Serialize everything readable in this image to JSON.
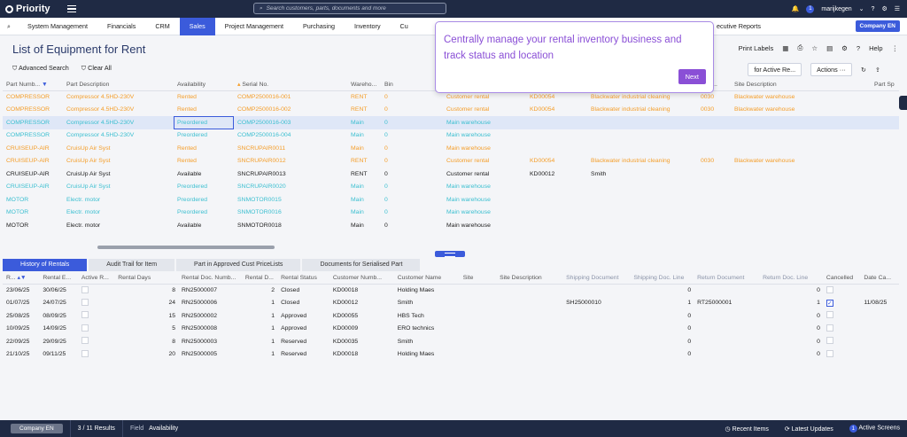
{
  "app": {
    "name": "Priority",
    "search_placeholder": "Search customers, parts, documents and more",
    "user": "marijkegen",
    "notif_count": "1",
    "company_btn": "Company EN"
  },
  "menu": [
    "System Management",
    "Financials",
    "CRM",
    "Sales",
    "Project Management",
    "Purchasing",
    "Inventory",
    "Cu",
    "ecutive Reports"
  ],
  "page": {
    "title": "List of Equipment for Rent",
    "print_labels": "Print Labels",
    "help": "Help",
    "advanced_search": "Advanced Search",
    "clear_all": "Clear All",
    "action_btn": "for Active Re...",
    "actions": "Actions"
  },
  "tooltip": {
    "text": "Centrally manage your rental inventory business and track status and location",
    "next": "Next"
  },
  "grid": {
    "headers": [
      "Part Numb...",
      "Part Description",
      "Availability",
      "Serial No.",
      "Wareho...",
      "Bin",
      "",
      "",
      "",
      "",
      "",
      "ame...",
      "Site Description",
      "Part Sp"
    ],
    "rows": [
      {
        "c": "rent",
        "v": [
          "COMPRESSOR",
          "Compressor 4.5HD-230V",
          "Rented",
          "COMP2500016-001",
          "RENT",
          "0",
          "Customer rental",
          "KD00054",
          "Blackwater industrial cleaning",
          "0030",
          "Blackwater warehouse"
        ]
      },
      {
        "c": "rent",
        "v": [
          "COMPRESSOR",
          "Compressor 4.5HD-230V",
          "Rented",
          "COMP2500016-002",
          "RENT",
          "0",
          "Customer rental",
          "KD00054",
          "Blackwater industrial cleaning",
          "0030",
          "Blackwater warehouse"
        ]
      },
      {
        "c": "pre",
        "sel": true,
        "v": [
          "COMPRESSOR",
          "Compressor 4.5HD-230V",
          "Preordered",
          "COMP2500016-003",
          "Main",
          "0",
          "Main warehouse",
          "",
          "",
          "",
          ""
        ]
      },
      {
        "c": "pre",
        "v": [
          "COMPRESSOR",
          "Compressor 4.5HD-230V",
          "Preordered",
          "COMP2500016-004",
          "Main",
          "0",
          "Main warehouse",
          "",
          "",
          "",
          ""
        ]
      },
      {
        "c": "rent",
        "v": [
          "CRUISEUP-AIR",
          "CruisUp Air Syst",
          "Rented",
          "SNCRUPAIR0011",
          "Main",
          "0",
          "Main warehouse",
          "",
          "",
          "",
          ""
        ]
      },
      {
        "c": "rent",
        "v": [
          "CRUISEUP-AIR",
          "CruisUp Air Syst",
          "Rented",
          "SNCRUPAIR0012",
          "RENT",
          "0",
          "Customer rental",
          "KD00054",
          "Blackwater industrial cleaning",
          "0030",
          "Blackwater warehouse"
        ]
      },
      {
        "c": "avail",
        "v": [
          "CRUISEUP-AIR",
          "CruisUp Air Syst",
          "Available",
          "SNCRUPAIR0013",
          "RENT",
          "0",
          "Customer rental",
          "KD00012",
          "Smith",
          "",
          ""
        ]
      },
      {
        "c": "pre",
        "v": [
          "CRUISEUP-AIR",
          "CruisUp Air Syst",
          "Preordered",
          "SNCRUPAIR0020",
          "Main",
          "0",
          "Main warehouse",
          "",
          "",
          "",
          ""
        ]
      },
      {
        "c": "pre",
        "v": [
          "MOTOR",
          "Electr. motor",
          "Preordered",
          "SNMOTOR0015",
          "Main",
          "0",
          "Main warehouse",
          "",
          "",
          "",
          ""
        ]
      },
      {
        "c": "pre",
        "v": [
          "MOTOR",
          "Electr. motor",
          "Preordered",
          "SNMOTOR0016",
          "Main",
          "0",
          "Main warehouse",
          "",
          "",
          "",
          ""
        ]
      },
      {
        "c": "avail",
        "v": [
          "MOTOR",
          "Electr. motor",
          "Available",
          "SNMOTOR0018",
          "Main",
          "0",
          "Main warehouse",
          "",
          "",
          "",
          ""
        ]
      }
    ]
  },
  "subtabs": [
    "History of Rentals",
    "Audit Trail for Item",
    "Part in Approved Cust PriceLists",
    "Documents for Serialised Part"
  ],
  "grid2": {
    "headers": [
      "R...",
      "Rental E...",
      "Active R...",
      "Rental Days",
      "Rental Doc. Numb...",
      "Rental D...",
      "Rental Status",
      "Customer Numb...",
      "Customer Name",
      "Site",
      "Site Description",
      "Shipping Document",
      "Shipping Doc. Line",
      "Return Document",
      "Return Doc. Line",
      "Cancelled",
      "Date Ca..."
    ],
    "rows": [
      [
        "23/06/25",
        "30/06/25",
        "",
        "8",
        "RN25000007",
        "2",
        "Closed",
        "KD00018",
        "Holding Maes",
        "",
        "",
        "",
        "0",
        "",
        "0",
        "",
        ""
      ],
      [
        "01/07/25",
        "24/07/25",
        "",
        "24",
        "RN25000006",
        "1",
        "Closed",
        "KD00012",
        "Smith",
        "",
        "",
        "SH25000010",
        "1",
        "RT25000001",
        "1",
        "✓",
        "11/08/25"
      ],
      [
        "25/08/25",
        "08/09/25",
        "",
        "15",
        "RN25000002",
        "1",
        "Approved",
        "KD00055",
        "HBS Tech",
        "",
        "",
        "",
        "0",
        "",
        "0",
        "",
        ""
      ],
      [
        "10/09/25",
        "14/09/25",
        "",
        "5",
        "RN25000008",
        "1",
        "Approved",
        "KD00009",
        "ERO technics",
        "",
        "",
        "",
        "0",
        "",
        "0",
        "",
        ""
      ],
      [
        "22/09/25",
        "29/09/25",
        "",
        "8",
        "RN25000003",
        "1",
        "Reserved",
        "KD00035",
        "Smith",
        "",
        "",
        "",
        "0",
        "",
        "0",
        "",
        ""
      ],
      [
        "21/10/25",
        "09/11/25",
        "",
        "20",
        "RN25000005",
        "1",
        "Reserved",
        "KD00018",
        "Holding Maes",
        "",
        "",
        "",
        "0",
        "",
        "0",
        "",
        ""
      ]
    ]
  },
  "status": {
    "company": "Company EN",
    "records": "3 / 11 Results",
    "field_label": "Field",
    "field_value": "Availability",
    "recent": "Recent Items",
    "latest": "Latest Updates",
    "active": "Active Screens",
    "active_count": "1"
  }
}
